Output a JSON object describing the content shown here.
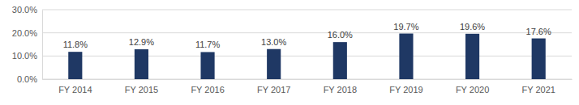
{
  "chart_data": {
    "type": "bar",
    "categories": [
      "FY 2014",
      "FY 2015",
      "FY 2016",
      "FY 2017",
      "FY 2018",
      "FY 2019",
      "FY 2020",
      "FY 2021"
    ],
    "values": [
      11.8,
      12.9,
      11.7,
      13.0,
      16.0,
      19.7,
      19.6,
      17.6
    ],
    "value_labels": [
      "11.8%",
      "12.9%",
      "11.7%",
      "13.0%",
      "16.0%",
      "19.7%",
      "19.6%",
      "17.6%"
    ],
    "color": "#1f3864",
    "ylim": [
      0,
      30
    ],
    "yticks": [
      {
        "value": 0,
        "label": "0.0%"
      },
      {
        "value": 10,
        "label": "10.0%"
      },
      {
        "value": 20,
        "label": "20.0%"
      },
      {
        "value": 30,
        "label": "30.0%"
      }
    ],
    "grid": true,
    "data_labels": true
  }
}
